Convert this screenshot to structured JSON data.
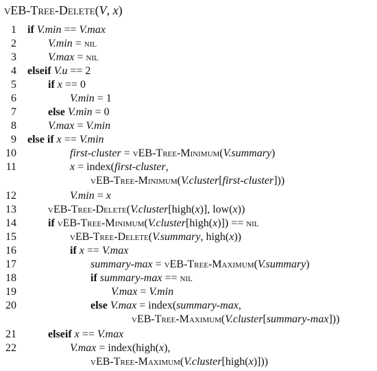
{
  "title": "vEB-Tree-Delete(V, x)",
  "line_numbers": [
    "1",
    "2",
    "3",
    "4",
    "5",
    "6",
    "7",
    "8",
    "9",
    "10",
    "11",
    "12",
    "13",
    "14",
    "15",
    "16",
    "17",
    "18",
    "19",
    "20",
    "21",
    "22"
  ]
}
